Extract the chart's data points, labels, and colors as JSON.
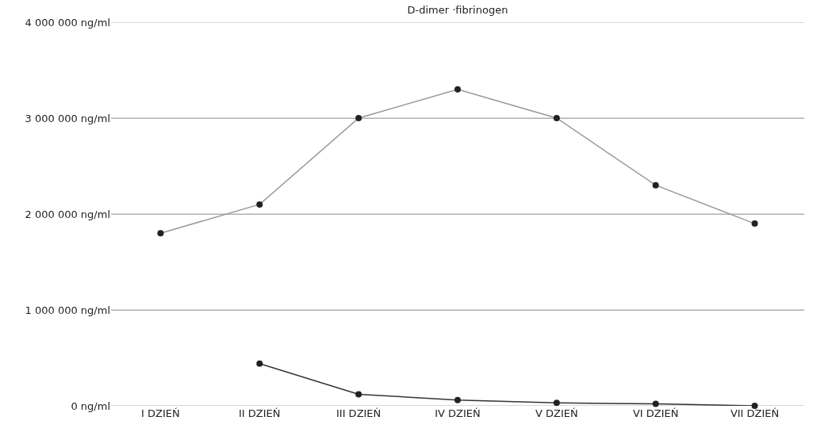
{
  "chart_data": {
    "type": "line",
    "title": "D-dimer ·fibrinogen",
    "categories": [
      "I DZIEŃ",
      "II DZIEŃ",
      "III DZIEŃ",
      "IV DZIEŃ",
      "V DZIEŃ",
      "VI DZIEŃ",
      "VII DZIEŃ"
    ],
    "series": [
      {
        "color": "#999999",
        "values": [
          1800000,
          2100000,
          3000000,
          3300000,
          3000000,
          2300000,
          1900000
        ]
      },
      {
        "color": "#333333",
        "values": [
          null,
          440000,
          120000,
          60000,
          30000,
          20000,
          0
        ]
      }
    ],
    "ylim": [
      0,
      4000000
    ],
    "yticks": [
      {
        "value": 0,
        "label": "0 ng/ml"
      },
      {
        "value": 1000000,
        "label": "1 000 000 ng/ml"
      },
      {
        "value": 2000000,
        "label": "2 000 000 ng/ml"
      },
      {
        "value": 3000000,
        "label": "3 000 000 ng/ml"
      },
      {
        "value": 4000000,
        "label": "4 000 000 ng/ml"
      }
    ],
    "grid": "y",
    "marker": "circle",
    "line_style": "solid"
  }
}
